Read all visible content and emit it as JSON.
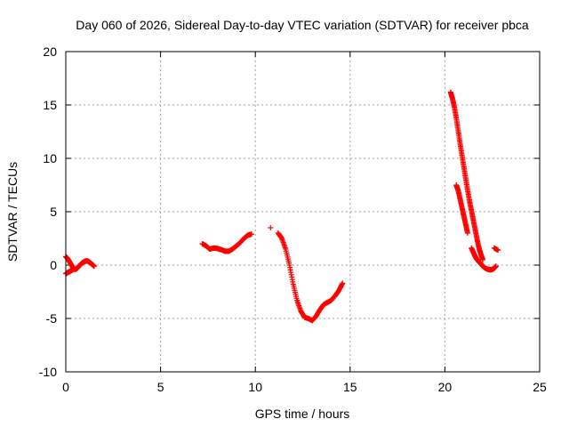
{
  "chart_data": {
    "type": "scatter",
    "title": "Day 060 of 2026, Sidereal Day-to-day VTEC variation (SDTVAR) for receiver pbca",
    "xlabel": "GPS time / hours",
    "ylabel": "SDTVAR / TECUs",
    "xlim": [
      0,
      25
    ],
    "ylim": [
      -10,
      20
    ],
    "xticks": [
      0,
      5,
      10,
      15,
      20,
      25
    ],
    "yticks": [
      -10,
      -5,
      0,
      5,
      10,
      15,
      20
    ],
    "xtick_labels": [
      "0",
      "5",
      "10",
      "15",
      "20",
      "25"
    ],
    "ytick_labels": [
      "-10",
      "-5",
      "0",
      "5",
      "10",
      "15",
      "20"
    ],
    "grid": true,
    "marker": "plus",
    "marker_color": "#ff0000",
    "series": [
      {
        "name": "SDTVAR",
        "segments": [
          [
            [
              0.0,
              0.8
            ],
            [
              0.1,
              0.6
            ],
            [
              0.2,
              0.3
            ],
            [
              0.3,
              0.0
            ],
            [
              0.4,
              -0.3
            ],
            [
              0.5,
              -0.4
            ],
            [
              0.6,
              -0.3
            ],
            [
              0.7,
              -0.1
            ],
            [
              0.8,
              0.1
            ],
            [
              0.9,
              0.25
            ],
            [
              1.0,
              0.35
            ],
            [
              1.1,
              0.4
            ],
            [
              1.2,
              0.35
            ],
            [
              1.3,
              0.2
            ],
            [
              1.4,
              0.05
            ],
            [
              1.5,
              -0.1
            ]
          ],
          [
            [
              0.0,
              -0.8
            ],
            [
              0.1,
              -0.7
            ],
            [
              0.2,
              -0.6
            ],
            [
              0.3,
              -0.5
            ],
            [
              0.4,
              -0.4
            ]
          ],
          [
            [
              7.2,
              2.0
            ],
            [
              7.4,
              1.8
            ],
            [
              7.6,
              1.5
            ],
            [
              7.8,
              1.6
            ],
            [
              8.0,
              1.55
            ],
            [
              8.2,
              1.45
            ],
            [
              8.4,
              1.3
            ],
            [
              8.6,
              1.3
            ],
            [
              8.8,
              1.5
            ],
            [
              9.0,
              1.8
            ],
            [
              9.2,
              2.1
            ],
            [
              9.4,
              2.5
            ],
            [
              9.6,
              2.8
            ],
            [
              9.8,
              2.9
            ]
          ],
          [
            [
              10.8,
              3.5
            ]
          ],
          [
            [
              11.2,
              3.0
            ],
            [
              11.4,
              2.5
            ],
            [
              11.6,
              1.5
            ],
            [
              11.8,
              0.0
            ],
            [
              12.0,
              -1.8
            ],
            [
              12.2,
              -3.3
            ],
            [
              12.4,
              -4.3
            ],
            [
              12.6,
              -4.9
            ],
            [
              12.8,
              -5.0
            ],
            [
              13.0,
              -5.2
            ],
            [
              13.2,
              -4.8
            ],
            [
              13.4,
              -4.2
            ],
            [
              13.6,
              -3.7
            ],
            [
              13.8,
              -3.5
            ],
            [
              14.0,
              -3.3
            ],
            [
              14.2,
              -2.9
            ],
            [
              14.4,
              -2.4
            ],
            [
              14.6,
              -1.7
            ]
          ],
          [
            [
              20.3,
              16.2
            ],
            [
              20.4,
              15.6
            ],
            [
              20.5,
              14.8
            ],
            [
              20.6,
              13.8
            ],
            [
              20.7,
              12.6
            ],
            [
              20.8,
              11.4
            ],
            [
              20.9,
              10.3
            ],
            [
              21.0,
              9.2
            ],
            [
              21.1,
              8.1
            ],
            [
              21.2,
              7.0
            ],
            [
              21.3,
              6.0
            ],
            [
              21.4,
              5.1
            ],
            [
              21.5,
              4.2
            ],
            [
              21.6,
              3.3
            ],
            [
              21.7,
              2.4
            ],
            [
              21.8,
              1.6
            ],
            [
              21.9,
              1.0
            ],
            [
              22.0,
              0.5
            ]
          ],
          [
            [
              20.6,
              7.5
            ],
            [
              20.7,
              7.0
            ],
            [
              20.8,
              6.2
            ],
            [
              20.9,
              5.4
            ],
            [
              21.0,
              4.6
            ],
            [
              21.1,
              3.8
            ],
            [
              21.2,
              3.0
            ]
          ],
          [
            [
              21.4,
              1.6
            ],
            [
              21.5,
              1.2
            ],
            [
              21.6,
              0.8
            ],
            [
              21.7,
              0.5
            ],
            [
              21.8,
              0.3
            ],
            [
              21.9,
              0.1
            ],
            [
              22.0,
              -0.1
            ],
            [
              22.1,
              -0.25
            ],
            [
              22.2,
              -0.35
            ],
            [
              22.3,
              -0.4
            ],
            [
              22.4,
              -0.45
            ],
            [
              22.5,
              -0.4
            ],
            [
              22.6,
              -0.3
            ],
            [
              22.7,
              -0.1
            ]
          ],
          [
            [
              22.6,
              1.6
            ],
            [
              22.8,
              1.4
            ]
          ]
        ]
      }
    ]
  }
}
